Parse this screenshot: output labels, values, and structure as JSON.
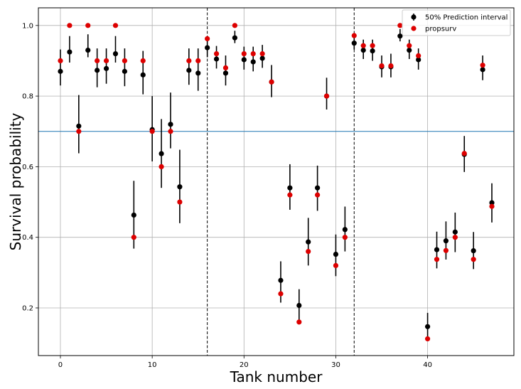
{
  "chart_data": {
    "type": "scatter",
    "title": "",
    "xlabel": "Tank number",
    "ylabel": "Survival probability",
    "xlim": [
      -2.4,
      49.4
    ],
    "ylim": [
      0.065,
      1.05
    ],
    "xticks": [
      0,
      10,
      20,
      30,
      40
    ],
    "yticks": [
      0.2,
      0.4,
      0.6,
      0.8,
      1.0
    ],
    "ytick_labels": [
      "0.2",
      "0.4",
      "0.6",
      "0.8",
      "1.0"
    ],
    "grid": true,
    "legend_position": "top-right",
    "colors": {
      "estimate": "#000000",
      "observed": "#dd0000",
      "reference_line": "#1f77b4",
      "grid": "#b0b0b0"
    },
    "reference_line_y": 0.7,
    "vertical_lines_x": [
      16,
      32
    ],
    "series": [
      {
        "name": "50% Prediction interval",
        "kind": "errorbar",
        "x": [
          0,
          1,
          2,
          3,
          4,
          5,
          6,
          7,
          8,
          9,
          10,
          11,
          12,
          13,
          14,
          15,
          16,
          17,
          18,
          19,
          20,
          21,
          22,
          23,
          24,
          25,
          26,
          27,
          28,
          29,
          30,
          31,
          32,
          33,
          34,
          35,
          36,
          37,
          38,
          39,
          40,
          41,
          42,
          43,
          44,
          45,
          46,
          47
        ],
        "y": [
          0.87,
          0.925,
          0.715,
          0.93,
          0.873,
          0.878,
          0.92,
          0.87,
          0.463,
          0.86,
          0.705,
          0.637,
          0.72,
          0.543,
          0.873,
          0.865,
          0.937,
          0.905,
          0.865,
          0.965,
          0.903,
          0.897,
          0.907,
          0.84,
          0.278,
          0.54,
          0.207,
          0.387,
          0.54,
          0.8,
          0.352,
          0.422,
          0.95,
          0.93,
          0.928,
          0.883,
          0.883,
          0.97,
          0.93,
          0.903,
          0.147,
          0.365,
          0.39,
          0.415,
          0.635,
          0.362,
          0.875,
          0.498
        ],
        "lower": [
          0.83,
          0.895,
          0.638,
          0.91,
          0.825,
          0.835,
          0.895,
          0.828,
          0.368,
          0.805,
          0.615,
          0.54,
          0.652,
          0.44,
          0.832,
          0.815,
          0.91,
          0.878,
          0.83,
          0.95,
          0.875,
          0.87,
          0.88,
          0.797,
          0.215,
          0.478,
          0.16,
          0.32,
          0.475,
          0.762,
          0.29,
          0.36,
          0.932,
          0.905,
          0.9,
          0.853,
          0.853,
          0.955,
          0.905,
          0.875,
          0.11,
          0.312,
          0.337,
          0.358,
          0.585,
          0.31,
          0.845,
          0.442
        ],
        "upper": [
          0.932,
          0.97,
          0.803,
          0.975,
          0.935,
          0.935,
          0.97,
          0.935,
          0.56,
          0.928,
          0.8,
          0.735,
          0.81,
          0.648,
          0.935,
          0.935,
          0.965,
          0.942,
          0.915,
          0.985,
          0.94,
          0.94,
          0.945,
          0.888,
          0.332,
          0.607,
          0.253,
          0.455,
          0.603,
          0.852,
          0.408,
          0.487,
          0.973,
          0.96,
          0.96,
          0.915,
          0.92,
          0.99,
          0.96,
          0.935,
          0.186,
          0.416,
          0.445,
          0.47,
          0.687,
          0.415,
          0.915,
          0.553
        ]
      },
      {
        "name": "propsurv",
        "kind": "scatter",
        "x": [
          0,
          1,
          2,
          3,
          4,
          5,
          6,
          7,
          8,
          9,
          10,
          11,
          12,
          13,
          14,
          15,
          16,
          17,
          18,
          19,
          20,
          21,
          22,
          23,
          24,
          25,
          26,
          27,
          28,
          29,
          30,
          31,
          32,
          33,
          34,
          35,
          36,
          37,
          38,
          39,
          40,
          41,
          42,
          43,
          44,
          45,
          46,
          47
        ],
        "y": [
          0.9,
          1.0,
          0.7,
          1.0,
          0.9,
          0.9,
          1.0,
          0.9,
          0.4,
          0.9,
          0.7,
          0.6,
          0.7,
          0.5,
          0.9,
          0.9,
          0.9625,
          0.92,
          0.88,
          1.0,
          0.92,
          0.92,
          0.92,
          0.84,
          0.24,
          0.52,
          0.16,
          0.36,
          0.52,
          0.8,
          0.32,
          0.4,
          0.9714,
          0.9429,
          0.9429,
          0.8857,
          0.8857,
          1.0,
          0.9429,
          0.9143,
          0.1125,
          0.3375,
          0.3625,
          0.4,
          0.6375,
          0.3375,
          0.8875,
          0.4875
        ]
      }
    ]
  }
}
